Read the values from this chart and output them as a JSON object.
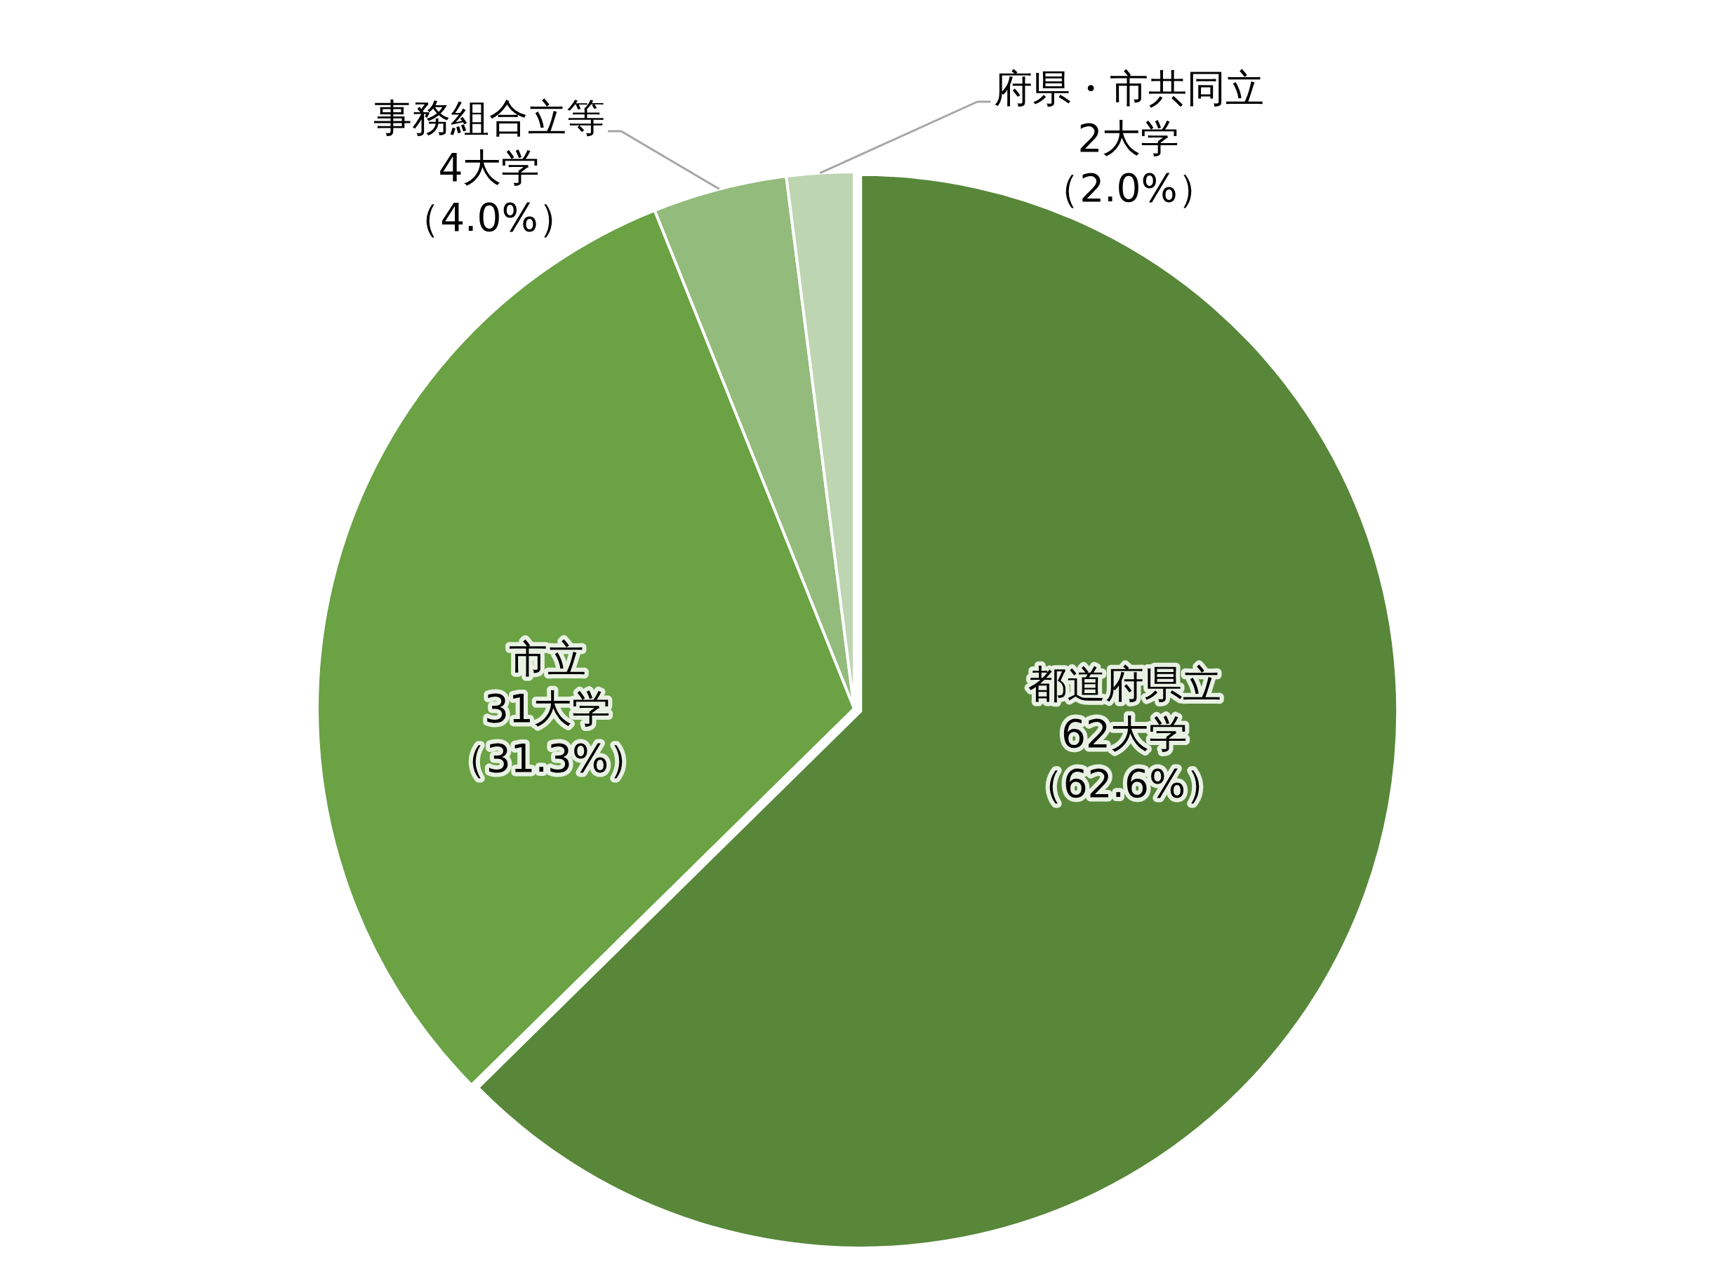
{
  "chart_data": {
    "type": "pie",
    "categories": [
      "都道府県立",
      "市立",
      "事務組合立等",
      "府県・市共同立"
    ],
    "values": [
      62,
      31,
      4,
      2
    ],
    "colors": [
      "#58873a",
      "#6aa244",
      "#93bb7c",
      "#bed5b1"
    ],
    "value_labels": [
      "62大学（62.6%）",
      "31大学（31.3%）",
      "4大学（4.0%）",
      "2大学（2.0%）"
    ]
  }
}
